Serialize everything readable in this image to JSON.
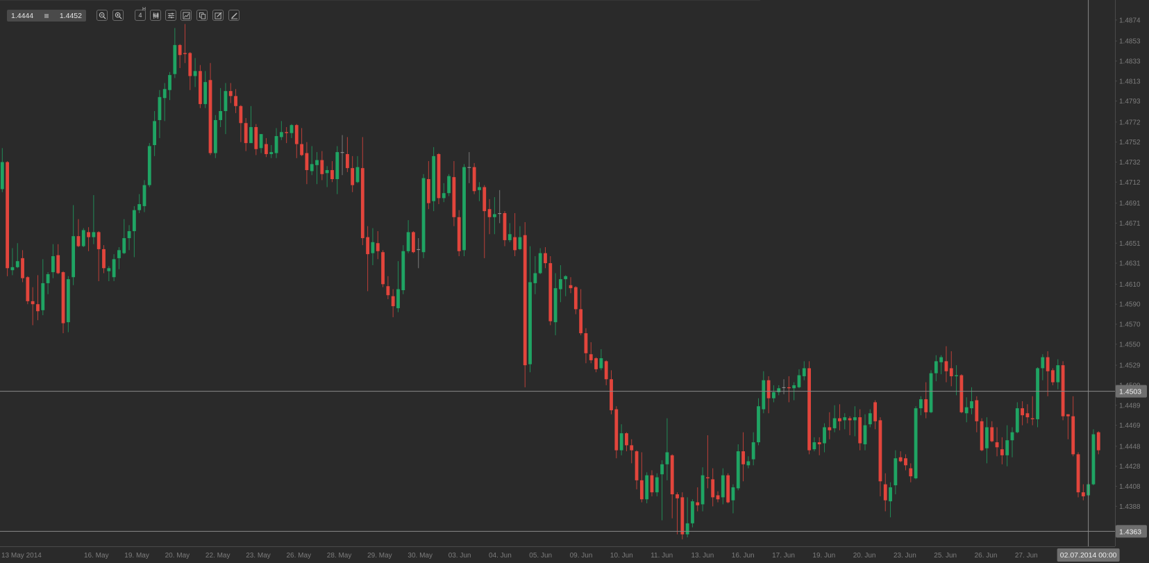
{
  "toolbar": {
    "bid": "1.4444",
    "ask": "1.4452",
    "timeframe_value": "4",
    "timeframe_unit": "H",
    "buttons": [
      "zoom-out-icon",
      "zoom-in-icon",
      "timeframe",
      "candlestick-icon",
      "sliders-icon",
      "chart-scale-icon",
      "copy-icon",
      "edit-icon",
      "draw-icon"
    ]
  },
  "colors": {
    "background": "#2a2a2a",
    "up": "#1fa463",
    "down": "#e2453c",
    "doji": "#8c8c8c",
    "axis_text": "#7d7d7d",
    "line": "#8a8a8a",
    "label_box": "#6f6f6f"
  },
  "chart_data": {
    "type": "candlestick",
    "timeframe": "4H",
    "ylim": [
      1.4348,
      1.4894
    ],
    "grid": false,
    "y_ticks": [
      "1.4874",
      "1.4853",
      "1.4833",
      "1.4813",
      "1.4793",
      "1.4772",
      "1.4752",
      "1.4732",
      "1.4712",
      "1.4691",
      "1.4671",
      "1.4651",
      "1.4631",
      "1.4610",
      "1.4590",
      "1.4570",
      "1.4550",
      "1.4529",
      "1.4509",
      "1.4489",
      "1.4469",
      "1.4448",
      "1.4428",
      "1.4408",
      "1.4388"
    ],
    "x_ticks": [
      "13 May 2014",
      "16. May",
      "19. May",
      "20. May",
      "22. May",
      "23. May",
      "26. May",
      "28. May",
      "29. May",
      "30. May",
      "03. Jun",
      "04. Jun",
      "05. Jun",
      "09. Jun",
      "10. Jun",
      "11. Jun",
      "13. Jun",
      "16. Jun",
      "17. Jun",
      "19. Jun",
      "20. Jun",
      "23. Jun",
      "25. Jun",
      "26. Jun",
      "27. Jun"
    ],
    "price_line": "1.4503",
    "crosshair": {
      "price": "1.4363",
      "date": "02.07.2014 00:00"
    },
    "candles_ohlc": [
      [
        1.4705,
        1.4746,
        1.4702,
        1.4732
      ],
      [
        1.4732,
        1.4733,
        1.4618,
        1.4626
      ],
      [
        1.4624,
        1.4646,
        1.4619,
        1.4627
      ],
      [
        1.4627,
        1.4651,
        1.4626,
        1.4633
      ],
      [
        1.4636,
        1.4644,
        1.4612,
        1.4616
      ],
      [
        1.4617,
        1.4618,
        1.459,
        1.4593
      ],
      [
        1.4593,
        1.4607,
        1.4569,
        1.459
      ],
      [
        1.459,
        1.4619,
        1.4574,
        1.4583
      ],
      [
        1.4584,
        1.4635,
        1.4579,
        1.4611
      ],
      [
        1.4611,
        1.4622,
        1.46,
        1.462
      ],
      [
        1.4622,
        1.465,
        1.4616,
        1.4638
      ],
      [
        1.4639,
        1.465,
        1.462,
        1.4621
      ],
      [
        1.4622,
        1.4623,
        1.4561,
        1.4571
      ],
      [
        1.4572,
        1.4618,
        1.4562,
        1.4615
      ],
      [
        1.4617,
        1.4689,
        1.4609,
        1.4658
      ],
      [
        1.4658,
        1.4675,
        1.4647,
        1.4648
      ],
      [
        1.4648,
        1.4666,
        1.4647,
        1.4664
      ],
      [
        1.4662,
        1.4667,
        1.4643,
        1.4657
      ],
      [
        1.4657,
        1.4699,
        1.465,
        1.4662
      ],
      [
        1.4662,
        1.4663,
        1.4613,
        1.4645
      ],
      [
        1.4645,
        1.4649,
        1.4621,
        1.4626
      ],
      [
        1.4623,
        1.4628,
        1.4613,
        1.4626
      ],
      [
        1.4617,
        1.464,
        1.4613,
        1.4635
      ],
      [
        1.4636,
        1.4647,
        1.4625,
        1.4644
      ],
      [
        1.4641,
        1.4675,
        1.464,
        1.4656
      ],
      [
        1.4656,
        1.4669,
        1.4644,
        1.4663
      ],
      [
        1.4663,
        1.4688,
        1.4637,
        1.4684
      ],
      [
        1.4684,
        1.47,
        1.4681,
        1.469
      ],
      [
        1.4688,
        1.4714,
        1.4682,
        1.4709
      ],
      [
        1.4709,
        1.4751,
        1.4707,
        1.4748
      ],
      [
        1.4749,
        1.4783,
        1.4738,
        1.4773
      ],
      [
        1.4774,
        1.4804,
        1.4756,
        1.4797
      ],
      [
        1.4796,
        1.4811,
        1.4773,
        1.4805
      ],
      [
        1.4804,
        1.4822,
        1.4794,
        1.4819
      ],
      [
        1.482,
        1.4866,
        1.4816,
        1.4849
      ],
      [
        1.4849,
        1.485,
        1.4826,
        1.4839
      ],
      [
        1.4841,
        1.487,
        1.4831,
        1.484
      ],
      [
        1.4841,
        1.4842,
        1.4804,
        1.4818
      ],
      [
        1.4818,
        1.4836,
        1.4807,
        1.4823
      ],
      [
        1.4823,
        1.4829,
        1.4786,
        1.479
      ],
      [
        1.479,
        1.4823,
        1.4786,
        1.4812
      ],
      [
        1.4814,
        1.4831,
        1.4739,
        1.4741
      ],
      [
        1.4741,
        1.4779,
        1.4736,
        1.4774
      ],
      [
        1.4774,
        1.4806,
        1.4767,
        1.4783
      ],
      [
        1.4783,
        1.4811,
        1.476,
        1.4803
      ],
      [
        1.4803,
        1.4811,
        1.4791,
        1.4798
      ],
      [
        1.4798,
        1.4805,
        1.4781,
        1.4788
      ],
      [
        1.4788,
        1.4789,
        1.4752,
        1.4771
      ],
      [
        1.4771,
        1.4776,
        1.4743,
        1.4751
      ],
      [
        1.4751,
        1.4788,
        1.4751,
        1.4767
      ],
      [
        1.4767,
        1.477,
        1.4739,
        1.4745
      ],
      [
        1.4746,
        1.476,
        1.4741,
        1.476
      ],
      [
        1.475,
        1.4756,
        1.4737,
        1.474
      ],
      [
        1.474,
        1.4749,
        1.4736,
        1.4742
      ],
      [
        1.4741,
        1.4766,
        1.4736,
        1.4758
      ],
      [
        1.4757,
        1.4773,
        1.4754,
        1.4762
      ],
      [
        1.4762,
        1.4767,
        1.4751,
        1.4761
      ],
      [
        1.4761,
        1.477,
        1.4756,
        1.4769
      ],
      [
        1.4769,
        1.477,
        1.4736,
        1.475
      ],
      [
        1.475,
        1.4766,
        1.4738,
        1.4739
      ],
      [
        1.4741,
        1.4752,
        1.471,
        1.4724
      ],
      [
        1.4723,
        1.4748,
        1.4719,
        1.473
      ],
      [
        1.4729,
        1.4742,
        1.471,
        1.4734
      ],
      [
        1.4734,
        1.4743,
        1.4714,
        1.472
      ],
      [
        1.4721,
        1.4728,
        1.4707,
        1.4724
      ],
      [
        1.4724,
        1.4733,
        1.4712,
        1.4715
      ],
      [
        1.4715,
        1.4748,
        1.47,
        1.4742
      ],
      [
        1.4742,
        1.4759,
        1.4719,
        1.4742
      ],
      [
        1.474,
        1.4757,
        1.4722,
        1.4726
      ],
      [
        1.4726,
        1.4738,
        1.4702,
        1.4709
      ],
      [
        1.4712,
        1.4738,
        1.4711,
        1.4727
      ],
      [
        1.4726,
        1.4757,
        1.4649,
        1.4656
      ],
      [
        1.4657,
        1.4668,
        1.4603,
        1.464
      ],
      [
        1.4641,
        1.4666,
        1.4629,
        1.4652
      ],
      [
        1.4651,
        1.4663,
        1.4635,
        1.4643
      ],
      [
        1.4642,
        1.4644,
        1.4607,
        1.461
      ],
      [
        1.4608,
        1.4618,
        1.4595,
        1.4599
      ],
      [
        1.4598,
        1.4605,
        1.4577,
        1.4588
      ],
      [
        1.4586,
        1.4633,
        1.4582,
        1.4605
      ],
      [
        1.4604,
        1.4649,
        1.46,
        1.4643
      ],
      [
        1.4643,
        1.4674,
        1.4641,
        1.4662
      ],
      [
        1.4662,
        1.4663,
        1.4641,
        1.4642
      ],
      [
        1.4645,
        1.4656,
        1.4626,
        1.4645
      ],
      [
        1.4642,
        1.472,
        1.4636,
        1.4716
      ],
      [
        1.4715,
        1.4733,
        1.4685,
        1.4691
      ],
      [
        1.4693,
        1.4747,
        1.4683,
        1.4738
      ],
      [
        1.474,
        1.4741,
        1.469,
        1.4696
      ],
      [
        1.4696,
        1.4711,
        1.4692,
        1.4701
      ],
      [
        1.4701,
        1.472,
        1.4698,
        1.4718
      ],
      [
        1.4717,
        1.4733,
        1.4668,
        1.4677
      ],
      [
        1.4677,
        1.4684,
        1.4638,
        1.4643
      ],
      [
        1.4644,
        1.473,
        1.4638,
        1.4727
      ],
      [
        1.4727,
        1.4742,
        1.4711,
        1.4727
      ],
      [
        1.4727,
        1.4731,
        1.47,
        1.4703
      ],
      [
        1.4704,
        1.4712,
        1.4693,
        1.4707
      ],
      [
        1.4707,
        1.4709,
        1.4636,
        1.4683
      ],
      [
        1.4685,
        1.4695,
        1.466,
        1.4677
      ],
      [
        1.4677,
        1.4697,
        1.466,
        1.468
      ],
      [
        1.4681,
        1.4704,
        1.4671,
        1.4681
      ],
      [
        1.4681,
        1.4683,
        1.4648,
        1.4654
      ],
      [
        1.4654,
        1.4671,
        1.4652,
        1.466
      ],
      [
        1.4657,
        1.4681,
        1.4638,
        1.4644
      ],
      [
        1.4645,
        1.4668,
        1.4644,
        1.4657
      ],
      [
        1.4659,
        1.4672,
        1.4507,
        1.4529
      ],
      [
        1.453,
        1.4648,
        1.4522,
        1.4612
      ],
      [
        1.4611,
        1.4638,
        1.46,
        1.4621
      ],
      [
        1.4621,
        1.4646,
        1.462,
        1.4641
      ],
      [
        1.4641,
        1.4647,
        1.4626,
        1.4631
      ],
      [
        1.4631,
        1.4638,
        1.4569,
        1.4573
      ],
      [
        1.4572,
        1.4621,
        1.4559,
        1.4606
      ],
      [
        1.4605,
        1.4629,
        1.4592,
        1.4615
      ],
      [
        1.4615,
        1.4619,
        1.4598,
        1.4618
      ],
      [
        1.4609,
        1.4617,
        1.4601,
        1.4606
      ],
      [
        1.4607,
        1.4608,
        1.458,
        1.4585
      ],
      [
        1.4585,
        1.4605,
        1.4559,
        1.4561
      ],
      [
        1.4561,
        1.4566,
        1.4531,
        1.4541
      ],
      [
        1.454,
        1.4552,
        1.4531,
        1.4534
      ],
      [
        1.4536,
        1.4537,
        1.4522,
        1.4525
      ],
      [
        1.4526,
        1.4545,
        1.4524,
        1.4536
      ],
      [
        1.4533,
        1.4534,
        1.4509,
        1.4515
      ],
      [
        1.4515,
        1.4524,
        1.448,
        1.4484
      ],
      [
        1.4485,
        1.4488,
        1.4436,
        1.4444
      ],
      [
        1.4444,
        1.447,
        1.4439,
        1.4461
      ],
      [
        1.4461,
        1.4462,
        1.4443,
        1.4449
      ],
      [
        1.4449,
        1.4455,
        1.4431,
        1.4444
      ],
      [
        1.4443,
        1.4444,
        1.4405,
        1.4414
      ],
      [
        1.4414,
        1.4442,
        1.4392,
        1.4395
      ],
      [
        1.4395,
        1.4422,
        1.4391,
        1.4419
      ],
      [
        1.4419,
        1.4424,
        1.4398,
        1.4402
      ],
      [
        1.4402,
        1.4421,
        1.4398,
        1.4417
      ],
      [
        1.442,
        1.4434,
        1.4374,
        1.443
      ],
      [
        1.443,
        1.4476,
        1.4414,
        1.4442
      ],
      [
        1.4439,
        1.444,
        1.4376,
        1.44
      ],
      [
        1.44,
        1.4402,
        1.436,
        1.4396
      ],
      [
        1.4397,
        1.4402,
        1.4355,
        1.436
      ],
      [
        1.436,
        1.4397,
        1.4357,
        1.4371
      ],
      [
        1.4371,
        1.4395,
        1.4367,
        1.4393
      ],
      [
        1.4392,
        1.4407,
        1.4383,
        1.4389
      ],
      [
        1.439,
        1.4427,
        1.4383,
        1.4419
      ],
      [
        1.4417,
        1.4459,
        1.4406,
        1.4416
      ],
      [
        1.4415,
        1.4426,
        1.4388,
        1.4397
      ],
      [
        1.4399,
        1.4403,
        1.4392,
        1.4395
      ],
      [
        1.4397,
        1.4426,
        1.439,
        1.4419
      ],
      [
        1.4419,
        1.4421,
        1.4391,
        1.4392
      ],
      [
        1.4394,
        1.441,
        1.4381,
        1.4407
      ],
      [
        1.4406,
        1.445,
        1.4404,
        1.4443
      ],
      [
        1.4443,
        1.4462,
        1.4413,
        1.443
      ],
      [
        1.4429,
        1.4438,
        1.4426,
        1.4433
      ],
      [
        1.4435,
        1.4462,
        1.4429,
        1.4452
      ],
      [
        1.4452,
        1.4496,
        1.4449,
        1.4488
      ],
      [
        1.4485,
        1.4523,
        1.4481,
        1.4514
      ],
      [
        1.4514,
        1.4518,
        1.4481,
        1.4496
      ],
      [
        1.4496,
        1.4509,
        1.4492,
        1.4502
      ],
      [
        1.4502,
        1.4509,
        1.4499,
        1.4506
      ],
      [
        1.4507,
        1.4515,
        1.45,
        1.4507
      ],
      [
        1.4507,
        1.4518,
        1.4492,
        1.4506
      ],
      [
        1.4506,
        1.4512,
        1.4494,
        1.4509
      ],
      [
        1.4507,
        1.4525,
        1.4506,
        1.4519
      ],
      [
        1.4518,
        1.4533,
        1.4514,
        1.4526
      ],
      [
        1.4526,
        1.4533,
        1.444,
        1.4444
      ],
      [
        1.4445,
        1.4457,
        1.4443,
        1.4452
      ],
      [
        1.4452,
        1.4457,
        1.4439,
        1.445
      ],
      [
        1.4451,
        1.4471,
        1.4442,
        1.4467
      ],
      [
        1.4467,
        1.4482,
        1.4455,
        1.4464
      ],
      [
        1.4466,
        1.4489,
        1.4462,
        1.4476
      ],
      [
        1.4476,
        1.449,
        1.4464,
        1.4473
      ],
      [
        1.4474,
        1.4481,
        1.4465,
        1.4477
      ],
      [
        1.4476,
        1.4478,
        1.4459,
        1.4474
      ],
      [
        1.4474,
        1.4488,
        1.4458,
        1.4477
      ],
      [
        1.4477,
        1.4485,
        1.4444,
        1.4451
      ],
      [
        1.445,
        1.448,
        1.4444,
        1.4469
      ],
      [
        1.447,
        1.4485,
        1.4467,
        1.4481
      ],
      [
        1.4492,
        1.4494,
        1.4465,
        1.4473
      ],
      [
        1.4474,
        1.4477,
        1.4398,
        1.4413
      ],
      [
        1.441,
        1.4421,
        1.4383,
        1.4394
      ],
      [
        1.4393,
        1.4412,
        1.4377,
        1.4407
      ],
      [
        1.4409,
        1.4444,
        1.44,
        1.4436
      ],
      [
        1.4437,
        1.4443,
        1.4432,
        1.4433
      ],
      [
        1.4436,
        1.444,
        1.4424,
        1.4429
      ],
      [
        1.4426,
        1.4431,
        1.4412,
        1.4418
      ],
      [
        1.4416,
        1.4488,
        1.4415,
        1.4486
      ],
      [
        1.4486,
        1.4498,
        1.4479,
        1.4495
      ],
      [
        1.4495,
        1.4512,
        1.4476,
        1.4482
      ],
      [
        1.4482,
        1.4524,
        1.4481,
        1.4521
      ],
      [
        1.4521,
        1.4539,
        1.4513,
        1.4533
      ],
      [
        1.4532,
        1.4539,
        1.452,
        1.4537
      ],
      [
        1.4533,
        1.4548,
        1.4512,
        1.4523
      ],
      [
        1.4526,
        1.4543,
        1.4508,
        1.4518
      ],
      [
        1.4518,
        1.4529,
        1.4499,
        1.4519
      ],
      [
        1.4519,
        1.452,
        1.4481,
        1.4482
      ],
      [
        1.4481,
        1.4497,
        1.4472,
        1.4487
      ],
      [
        1.4486,
        1.4507,
        1.448,
        1.4493
      ],
      [
        1.4494,
        1.4498,
        1.4462,
        1.4473
      ],
      [
        1.4473,
        1.4476,
        1.4443,
        1.4444
      ],
      [
        1.4446,
        1.4477,
        1.4431,
        1.4467
      ],
      [
        1.4467,
        1.4473,
        1.4452,
        1.4453
      ],
      [
        1.4452,
        1.4467,
        1.4438,
        1.4447
      ],
      [
        1.4445,
        1.4457,
        1.443,
        1.4439
      ],
      [
        1.4439,
        1.4469,
        1.4428,
        1.4454
      ],
      [
        1.4454,
        1.4467,
        1.4437,
        1.4462
      ],
      [
        1.4462,
        1.4492,
        1.4461,
        1.4486
      ],
      [
        1.4486,
        1.4493,
        1.4469,
        1.4479
      ],
      [
        1.4481,
        1.449,
        1.4471,
        1.4477
      ],
      [
        1.4476,
        1.4498,
        1.4469,
        1.4475
      ],
      [
        1.4475,
        1.4527,
        1.4467,
        1.4526
      ],
      [
        1.4526,
        1.454,
        1.4514,
        1.4537
      ],
      [
        1.4537,
        1.4543,
        1.4498,
        1.4523
      ],
      [
        1.4524,
        1.4526,
        1.4509,
        1.4512
      ],
      [
        1.4512,
        1.4535,
        1.4505,
        1.4529
      ],
      [
        1.4529,
        1.4533,
        1.4474,
        1.4478
      ],
      [
        1.448,
        1.448,
        1.4455,
        1.4478
      ],
      [
        1.4478,
        1.4498,
        1.4438,
        1.444
      ],
      [
        1.444,
        1.4442,
        1.4397,
        1.4402
      ],
      [
        1.4402,
        1.441,
        1.4394,
        1.4398
      ],
      [
        1.4399,
        1.4411,
        1.4398,
        1.441
      ],
      [
        1.441,
        1.4465,
        1.4409,
        1.446
      ],
      [
        1.4462,
        1.4463,
        1.444,
        1.4444
      ]
    ]
  }
}
